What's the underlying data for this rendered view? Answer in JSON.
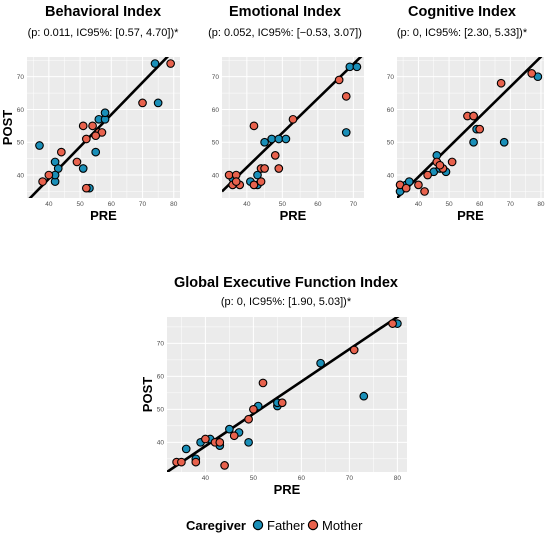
{
  "colors": {
    "father": "#1a8fb8",
    "mother": "#e8624d",
    "panel_bg": "#ebebeb",
    "grid": "#ffffff",
    "regression_line": "#000000",
    "point_outline": "#000000"
  },
  "legend": {
    "title": "Caregiver",
    "items": [
      {
        "key": "father",
        "label": "Father"
      },
      {
        "key": "mother",
        "label": "Mother"
      }
    ],
    "placement": "bottom-center"
  },
  "chart_data": [
    {
      "type": "scatter",
      "title": "Behavioral  Index",
      "subtitle": "(p: 0.011, IC95%: [0.57, 4.70])*",
      "xlabel": "PRE",
      "ylabel": "POST",
      "xlim": [
        33,
        82
      ],
      "ylim": [
        33,
        76
      ],
      "xticks": [
        40,
        50,
        60,
        70,
        80
      ],
      "yticks": [
        40,
        50,
        60,
        70
      ],
      "grid": true,
      "regression": {
        "x": [
          33,
          82
        ],
        "y": [
          32,
          80
        ]
      },
      "series": [
        {
          "name": "Father",
          "color_key": "father",
          "points": [
            [
              37,
              49
            ],
            [
              42,
              44
            ],
            [
              43,
              42
            ],
            [
              42,
              38
            ],
            [
              51,
              42
            ],
            [
              53,
              36
            ],
            [
              55,
              47
            ],
            [
              56,
              57
            ],
            [
              58,
              57
            ],
            [
              58,
              59
            ],
            [
              74,
              74
            ],
            [
              75,
              62
            ],
            [
              42,
              40
            ]
          ]
        },
        {
          "name": "Mother",
          "color_key": "mother",
          "points": [
            [
              38,
              38
            ],
            [
              40,
              40
            ],
            [
              44,
              47
            ],
            [
              49,
              44
            ],
            [
              51,
              55
            ],
            [
              52,
              51
            ],
            [
              54,
              55
            ],
            [
              56,
              53
            ],
            [
              57,
              53
            ],
            [
              52,
              36
            ],
            [
              70,
              62
            ],
            [
              79,
              74
            ],
            [
              55,
              52
            ]
          ]
        }
      ]
    },
    {
      "type": "scatter",
      "title": "Emotional  Index",
      "subtitle": "(p: 0.052, IC95%: [−0.53, 3.07])",
      "xlabel": "PRE",
      "ylabel": "",
      "xlim": [
        33,
        73
      ],
      "ylim": [
        33,
        76
      ],
      "xticks": [
        40,
        50,
        60,
        70
      ],
      "yticks": [
        40,
        50,
        60,
        70
      ],
      "grid": true,
      "regression": {
        "x": [
          33,
          73
        ],
        "y": [
          35,
          77
        ]
      },
      "series": [
        {
          "name": "Father",
          "color_key": "father",
          "points": [
            [
              36,
              39
            ],
            [
              41,
              38
            ],
            [
              43,
              40
            ],
            [
              43,
              37
            ],
            [
              45,
              50
            ],
            [
              47,
              51
            ],
            [
              49,
              51
            ],
            [
              51,
              51
            ],
            [
              68,
              53
            ],
            [
              69,
              73
            ],
            [
              71,
              73
            ]
          ]
        },
        {
          "name": "Mother",
          "color_key": "mother",
          "points": [
            [
              35,
              40
            ],
            [
              36,
              37
            ],
            [
              37,
              40
            ],
            [
              38,
              37
            ],
            [
              42,
              37
            ],
            [
              42,
              55
            ],
            [
              44,
              42
            ],
            [
              45,
              42
            ],
            [
              48,
              46
            ],
            [
              49,
              42
            ],
            [
              53,
              57
            ],
            [
              66,
              69
            ],
            [
              68,
              64
            ],
            [
              37,
              38
            ],
            [
              44,
              38
            ]
          ]
        }
      ]
    },
    {
      "type": "scatter",
      "title": "Cognitive  Index",
      "subtitle": "(p: 0, IC95%: [2.30, 5.33])*",
      "xlabel": "PRE",
      "ylabel": "",
      "xlim": [
        33,
        81
      ],
      "ylim": [
        33,
        76
      ],
      "xticks": [
        40,
        50,
        60,
        70,
        80
      ],
      "yticks": [
        40,
        50,
        60,
        70
      ],
      "grid": true,
      "regression": {
        "x": [
          33,
          81
        ],
        "y": [
          33,
          77
        ]
      },
      "series": [
        {
          "name": "Father",
          "color_key": "father",
          "points": [
            [
              34,
              35
            ],
            [
              36,
              37
            ],
            [
              37,
              38
            ],
            [
              45,
              41
            ],
            [
              46,
              46
            ],
            [
              47,
              42
            ],
            [
              49,
              41
            ],
            [
              58,
              50
            ],
            [
              58,
              58
            ],
            [
              59,
              54
            ],
            [
              68,
              50
            ],
            [
              79,
              70
            ]
          ]
        },
        {
          "name": "Mother",
          "color_key": "mother",
          "points": [
            [
              34,
              37
            ],
            [
              36,
              36
            ],
            [
              40,
              37
            ],
            [
              42,
              35
            ],
            [
              43,
              40
            ],
            [
              46,
              44
            ],
            [
              48,
              42
            ],
            [
              51,
              44
            ],
            [
              56,
              58
            ],
            [
              58,
              58
            ],
            [
              60,
              54
            ],
            [
              67,
              68
            ],
            [
              77,
              71
            ],
            [
              47,
              43
            ]
          ]
        }
      ]
    },
    {
      "type": "scatter",
      "title": "Global Executive Function Index",
      "subtitle": "(p: 0, IC95%: [1.90, 5.03])*",
      "xlabel": "PRE",
      "ylabel": "POST",
      "xlim": [
        32,
        82
      ],
      "ylim": [
        31,
        78
      ],
      "xticks": [
        40,
        50,
        60,
        70,
        80
      ],
      "yticks": [
        40,
        50,
        60,
        70
      ],
      "grid": true,
      "regression": {
        "x": [
          32,
          82
        ],
        "y": [
          31,
          80
        ]
      },
      "series": [
        {
          "name": "Father",
          "color_key": "father",
          "points": [
            [
              36,
              38
            ],
            [
              38,
              35
            ],
            [
              39,
              40
            ],
            [
              41,
              41
            ],
            [
              43,
              39
            ],
            [
              45,
              44
            ],
            [
              47,
              43
            ],
            [
              49,
              40
            ],
            [
              51,
              51
            ],
            [
              55,
              51
            ],
            [
              55,
              52
            ],
            [
              64,
              64
            ],
            [
              73,
              54
            ],
            [
              80,
              76
            ]
          ]
        },
        {
          "name": "Mother",
          "color_key": "mother",
          "points": [
            [
              34,
              34
            ],
            [
              35,
              34
            ],
            [
              38,
              34
            ],
            [
              40,
              41
            ],
            [
              42,
              40
            ],
            [
              43,
              40
            ],
            [
              44,
              33
            ],
            [
              46,
              42
            ],
            [
              49,
              47
            ],
            [
              50,
              50
            ],
            [
              52,
              58
            ],
            [
              56,
              52
            ],
            [
              71,
              68
            ],
            [
              79,
              76
            ]
          ]
        }
      ]
    }
  ]
}
